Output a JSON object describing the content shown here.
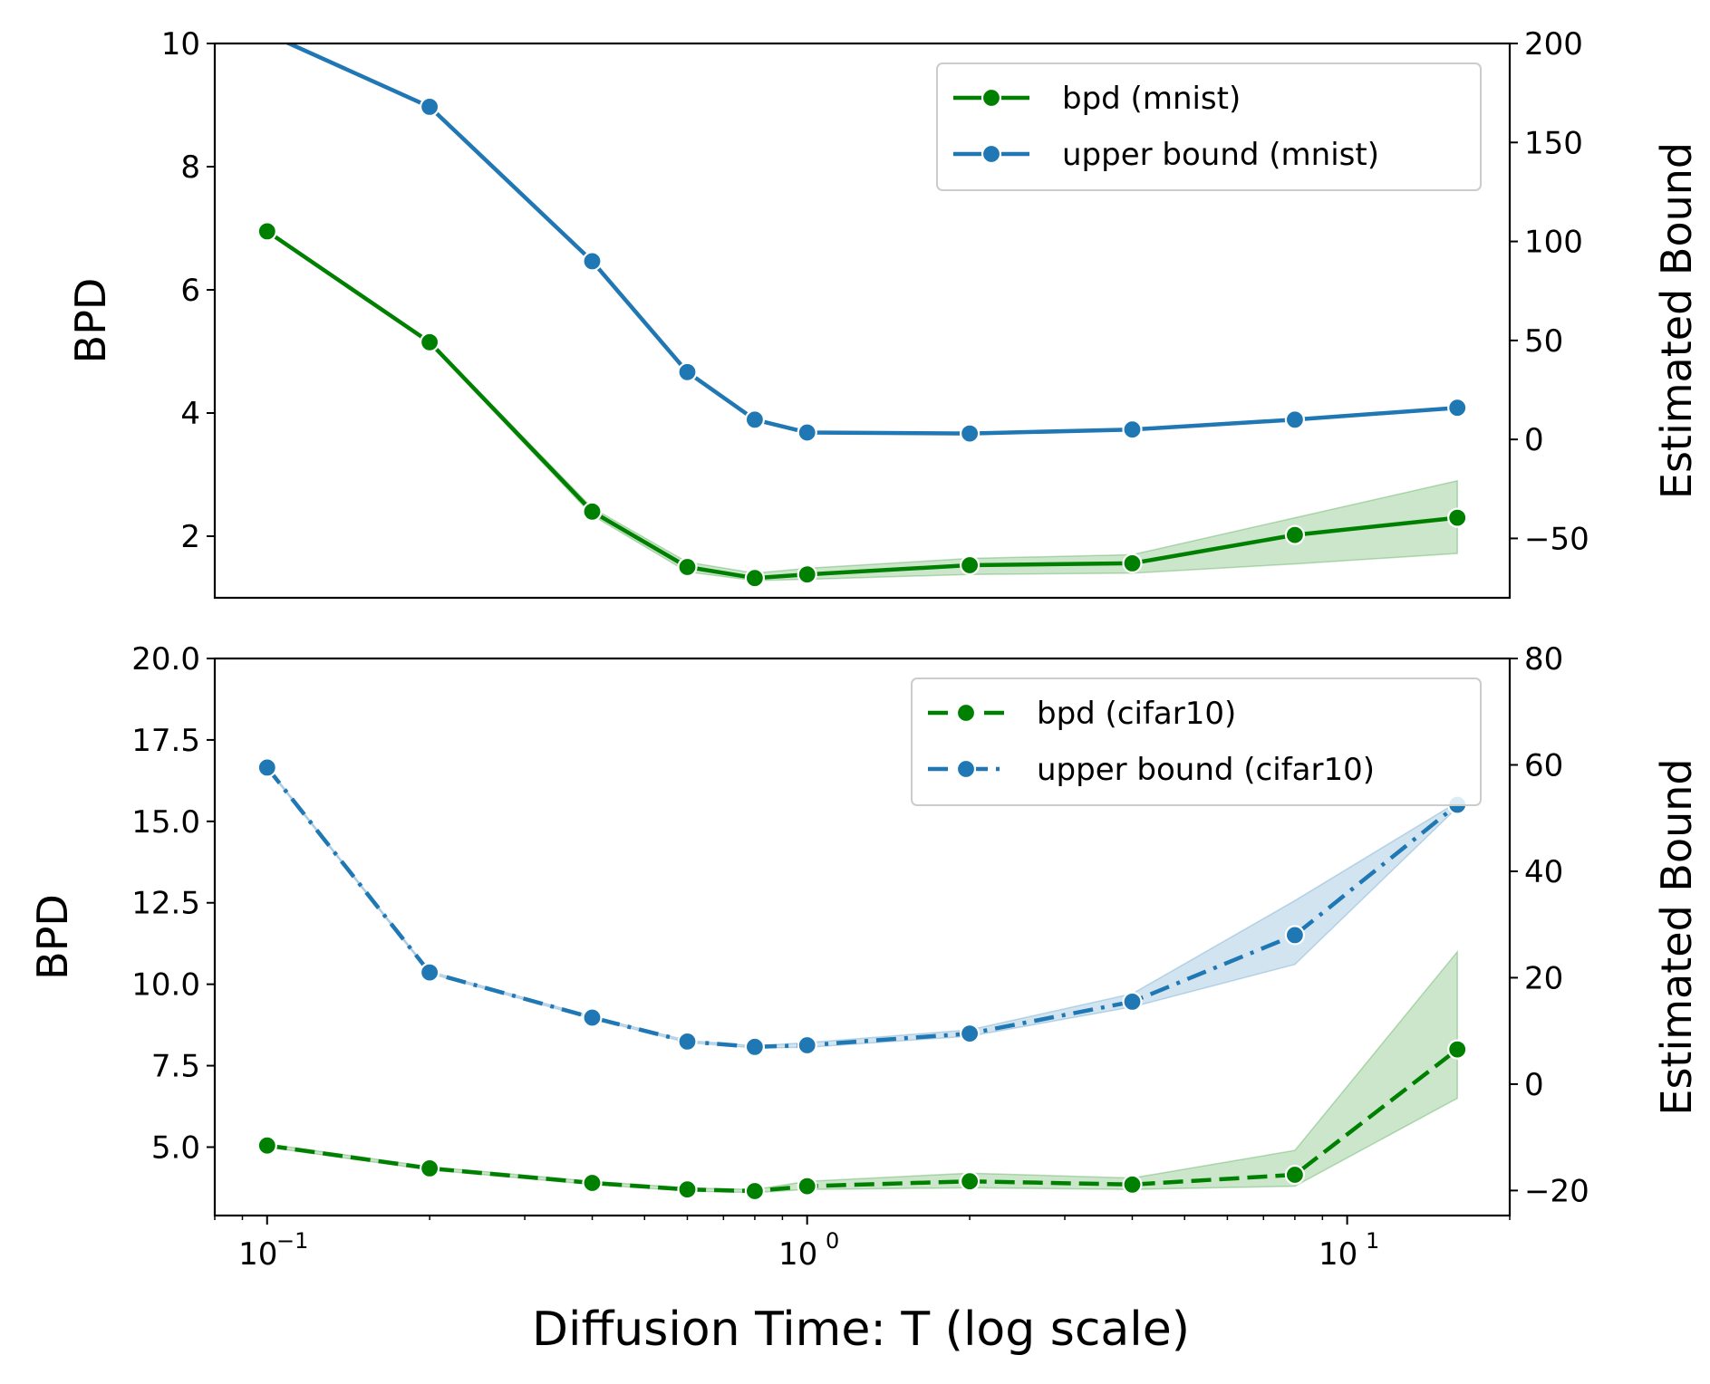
{
  "colors": {
    "green": "#008000",
    "blue": "#1f77b4"
  },
  "xaxis": {
    "label": "Diffusion Time: T (log scale)",
    "scale": "log",
    "ticks": [
      {
        "value": 0.1,
        "base": "10",
        "exp": "−1"
      },
      {
        "value": 1,
        "base": "10",
        "exp": "0"
      },
      {
        "value": 10,
        "base": "10",
        "exp": "1"
      }
    ]
  },
  "chart_data": [
    {
      "type": "line",
      "panel": "top",
      "x": [
        0.1,
        0.2,
        0.4,
        0.6,
        0.8,
        1.0,
        2.0,
        4.0,
        8.0,
        16.0
      ],
      "xlim": [
        0.08,
        20
      ],
      "left_axis": {
        "label": "BPD",
        "ylim": [
          1.0,
          10.0
        ],
        "ticks": [
          {
            "value": 2,
            "label": "2"
          },
          {
            "value": 4,
            "label": "4"
          },
          {
            "value": 6,
            "label": "6"
          },
          {
            "value": 8,
            "label": "8"
          },
          {
            "value": 10,
            "label": "10"
          }
        ]
      },
      "right_axis": {
        "label": "Estimated Bound",
        "ylim": [
          -80,
          200
        ],
        "ticks": [
          {
            "value": -50,
            "label": "−50"
          },
          {
            "value": 0,
            "label": "0"
          },
          {
            "value": 50,
            "label": "50"
          },
          {
            "value": 100,
            "label": "100"
          },
          {
            "value": 150,
            "label": "150"
          },
          {
            "value": 200,
            "label": "200"
          }
        ]
      },
      "series": [
        {
          "name": "bpd (mnist)",
          "axis": "left",
          "color": "green",
          "style": "solid",
          "values": [
            6.95,
            5.15,
            2.4,
            1.5,
            1.32,
            1.38,
            1.53,
            1.56,
            2.02,
            2.3
          ],
          "band_low": [
            6.93,
            5.13,
            2.34,
            1.42,
            1.28,
            1.3,
            1.38,
            1.4,
            1.55,
            1.72
          ],
          "band_high": [
            6.97,
            5.17,
            2.46,
            1.58,
            1.4,
            1.48,
            1.64,
            1.7,
            2.3,
            2.9
          ]
        },
        {
          "name": "upper bound (mnist)",
          "axis": "right",
          "color": "blue",
          "style": "solid",
          "values": [
            205,
            168,
            90,
            34,
            10,
            3.5,
            3,
            5,
            10,
            16
          ],
          "band_low": [
            205,
            168,
            90,
            34,
            10,
            3.5,
            3,
            5,
            10,
            16
          ],
          "band_high": [
            205,
            168,
            90,
            34,
            10,
            3.5,
            3,
            5,
            10,
            16
          ]
        }
      ],
      "legend": {
        "location": "upper right",
        "entries": [
          "bpd (mnist)",
          "upper bound (mnist)"
        ]
      }
    },
    {
      "type": "line",
      "panel": "bottom",
      "x": [
        0.1,
        0.2,
        0.4,
        0.6,
        0.8,
        1.0,
        2.0,
        4.0,
        8.0,
        16.0
      ],
      "xlim": [
        0.08,
        20
      ],
      "left_axis": {
        "label": "BPD",
        "ylim": [
          2.9,
          20.0
        ],
        "ticks": [
          {
            "value": 5,
            "label": "5.0"
          },
          {
            "value": 7.5,
            "label": "7.5"
          },
          {
            "value": 10,
            "label": "10.0"
          },
          {
            "value": 12.5,
            "label": "12.5"
          },
          {
            "value": 15,
            "label": "15.0"
          },
          {
            "value": 17.5,
            "label": "17.5"
          },
          {
            "value": 20,
            "label": "20.0"
          }
        ]
      },
      "right_axis": {
        "label": "Estimated Bound",
        "ylim": [
          -24.7,
          80
        ],
        "ticks": [
          {
            "value": -20,
            "label": "−20"
          },
          {
            "value": 0,
            "label": "0"
          },
          {
            "value": 20,
            "label": "20"
          },
          {
            "value": 40,
            "label": "40"
          },
          {
            "value": 60,
            "label": "60"
          },
          {
            "value": 80,
            "label": "80"
          }
        ]
      },
      "series": [
        {
          "name": "bpd (cifar10)",
          "axis": "left",
          "color": "green",
          "style": "dashed",
          "values": [
            5.05,
            4.35,
            3.9,
            3.7,
            3.65,
            3.8,
            3.95,
            3.85,
            4.15,
            8.0
          ],
          "band_low": [
            5.0,
            4.3,
            3.85,
            3.65,
            3.6,
            3.7,
            3.75,
            3.7,
            3.8,
            6.5
          ],
          "band_high": [
            5.1,
            4.4,
            3.95,
            3.75,
            3.7,
            3.95,
            4.2,
            4.05,
            4.9,
            11.0
          ]
        },
        {
          "name": "upper bound (cifar10)",
          "axis": "right",
          "color": "blue",
          "style": "dashdot",
          "values": [
            59.5,
            21,
            12.5,
            8.0,
            7.0,
            7.3,
            9.5,
            15.5,
            28,
            52.5
          ],
          "band_low": [
            59.3,
            20.8,
            12.3,
            7.8,
            6.8,
            6.9,
            9.0,
            14.5,
            22.5,
            52.0
          ],
          "band_high": [
            59.7,
            21.2,
            12.7,
            8.2,
            7.2,
            7.8,
            10.2,
            17.0,
            34.5,
            53.0
          ]
        }
      ],
      "legend": {
        "location": "upper right",
        "entries": [
          "bpd (cifar10)",
          "upper bound (cifar10)"
        ]
      }
    }
  ]
}
